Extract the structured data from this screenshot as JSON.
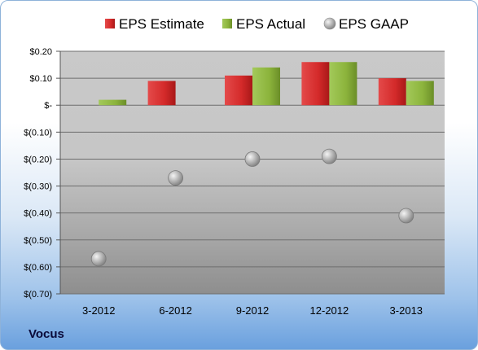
{
  "company": "Vocus",
  "colors": {
    "estimate": "#d42a2a",
    "actual": "#8cb43c",
    "gaap": "#b4b4b4"
  },
  "chart_data": {
    "type": "bar",
    "categories": [
      "3-2012",
      "6-2012",
      "9-2012",
      "12-2012",
      "3-2013"
    ],
    "series": [
      {
        "name": "EPS Estimate",
        "kind": "bar",
        "values": [
          null,
          0.09,
          0.11,
          0.16,
          0.1
        ]
      },
      {
        "name": "EPS Actual",
        "kind": "bar",
        "values": [
          0.02,
          null,
          0.14,
          0.16,
          0.09
        ]
      },
      {
        "name": "EPS GAAP",
        "kind": "marker",
        "values": [
          -0.57,
          -0.27,
          -0.2,
          -0.19,
          -0.41
        ]
      }
    ],
    "ylim": [
      -0.7,
      0.2
    ],
    "yticks": [
      {
        "value": 0.2,
        "label": "$0.20"
      },
      {
        "value": 0.1,
        "label": "$0.10"
      },
      {
        "value": 0.0,
        "label": "$-"
      },
      {
        "value": -0.1,
        "label": "$(0.10)"
      },
      {
        "value": -0.2,
        "label": "$(0.20)"
      },
      {
        "value": -0.3,
        "label": "$(0.30)"
      },
      {
        "value": -0.4,
        "label": "$(0.40)"
      },
      {
        "value": -0.5,
        "label": "$(0.50)"
      },
      {
        "value": -0.6,
        "label": "$(0.60)"
      },
      {
        "value": -0.7,
        "label": "$(0.70)"
      }
    ],
    "grid": true,
    "legend_position": "top"
  }
}
